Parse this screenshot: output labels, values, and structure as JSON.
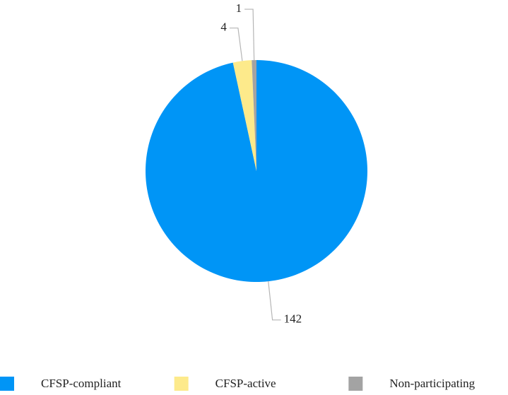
{
  "chart_data": {
    "type": "pie",
    "categories": [
      "CFSP-compliant",
      "CFSP-active",
      "Non-participating"
    ],
    "values": [
      142,
      4,
      1
    ],
    "colors": [
      "#0095f6",
      "#fdea8b",
      "#a3a3a3"
    ],
    "legend": "bottom"
  }
}
